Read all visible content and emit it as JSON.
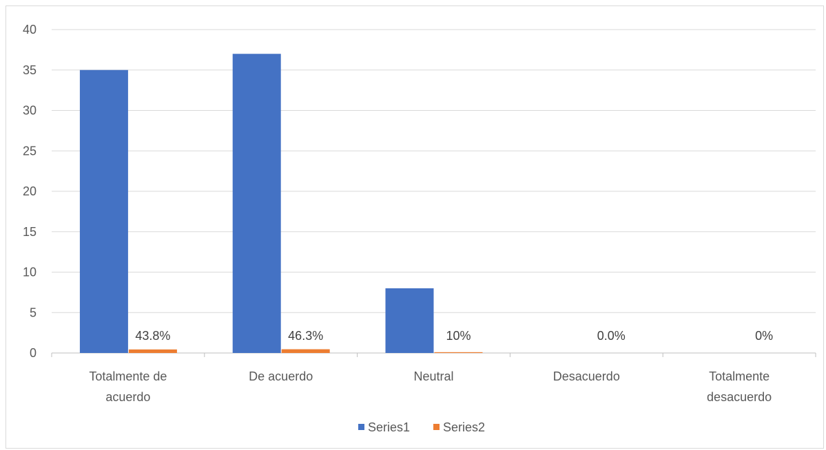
{
  "chart_data": {
    "type": "bar",
    "categories": [
      "Totalmente de acuerdo",
      "De acuerdo",
      "Neutral",
      "Desacuerdo",
      "Totalmente desacuerdo"
    ],
    "category_lines": [
      [
        "Totalmente de",
        "acuerdo"
      ],
      [
        "De acuerdo"
      ],
      [
        "Neutral"
      ],
      [
        "Desacuerdo"
      ],
      [
        "Totalmente",
        "desacuerdo"
      ]
    ],
    "series": [
      {
        "name": "Series1",
        "color": "#4472C4",
        "values": [
          35,
          37,
          8,
          0,
          0
        ]
      },
      {
        "name": "Series2",
        "color": "#ED7D31",
        "values": [
          0.438,
          0.463,
          0.1,
          0.0,
          0
        ]
      }
    ],
    "data_labels": [
      "43.8%",
      "46.3%",
      "10%",
      "0.0%",
      "0%"
    ],
    "ylim": [
      0,
      40
    ],
    "y_ticks": [
      0,
      5,
      10,
      15,
      20,
      25,
      30,
      35,
      40
    ],
    "grid": true,
    "legend_position": "bottom",
    "title": "",
    "xlabel": "",
    "ylabel": ""
  }
}
